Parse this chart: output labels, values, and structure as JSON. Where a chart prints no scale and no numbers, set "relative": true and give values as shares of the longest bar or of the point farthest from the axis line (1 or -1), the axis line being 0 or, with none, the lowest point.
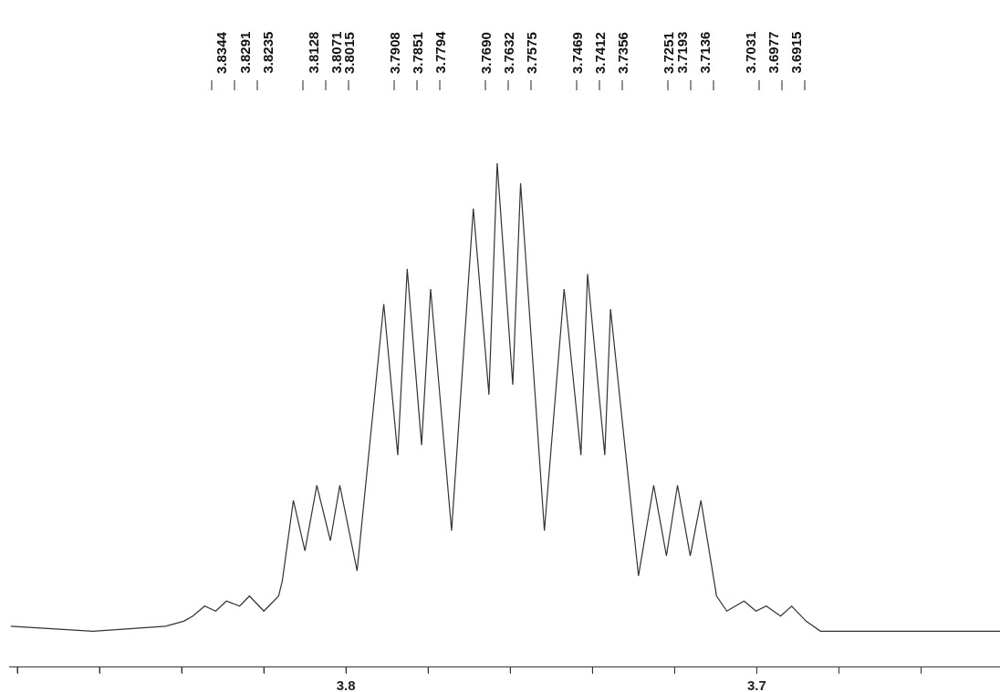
{
  "chart_data": {
    "type": "line",
    "relative": true,
    "grid": false,
    "marker": "none",
    "line_style": "solid",
    "xlim": [
      3.882,
      3.6408
    ],
    "xticks": [
      {
        "value": 3.88,
        "label": null
      },
      {
        "value": 3.86,
        "label": null
      },
      {
        "value": 3.84,
        "label": null
      },
      {
        "value": 3.82,
        "label": null
      },
      {
        "value": 3.8,
        "label": "3.8"
      },
      {
        "value": 3.78,
        "label": null
      },
      {
        "value": 3.76,
        "label": null
      },
      {
        "value": 3.74,
        "label": null
      },
      {
        "value": 3.72,
        "label": null
      },
      {
        "value": 3.7,
        "label": "3.7"
      },
      {
        "value": 3.68,
        "label": null
      },
      {
        "value": 3.66,
        "label": null
      }
    ],
    "series": [
      {
        "color": "#333333",
        "x": [
          3.8816,
          3.8616,
          3.8439,
          3.8395,
          3.8373,
          3.8344,
          3.8317,
          3.8291,
          3.8259,
          3.8235,
          3.82,
          3.8164,
          3.8155,
          3.8128,
          3.81,
          3.8071,
          3.8038,
          3.8015,
          3.7973,
          3.7908,
          3.7874,
          3.7851,
          3.7816,
          3.7794,
          3.7743,
          3.769,
          3.7652,
          3.7632,
          3.7594,
          3.7575,
          3.7517,
          3.7469,
          3.7428,
          3.7412,
          3.737,
          3.7356,
          3.7288,
          3.7251,
          3.722,
          3.7193,
          3.7162,
          3.7136,
          3.7098,
          3.7073,
          3.7031,
          3.7002,
          3.6977,
          3.6942,
          3.6915,
          3.688,
          3.6845,
          3.6621,
          3.6408
        ],
        "values": [
          0.08,
          0.07,
          0.08,
          0.09,
          0.1,
          0.12,
          0.11,
          0.13,
          0.12,
          0.14,
          0.11,
          0.14,
          0.17,
          0.33,
          0.23,
          0.36,
          0.25,
          0.36,
          0.19,
          0.72,
          0.42,
          0.79,
          0.44,
          0.75,
          0.27,
          0.91,
          0.54,
          1.0,
          0.56,
          0.96,
          0.27,
          0.75,
          0.42,
          0.78,
          0.42,
          0.71,
          0.18,
          0.36,
          0.22,
          0.36,
          0.22,
          0.33,
          0.14,
          0.11,
          0.13,
          0.11,
          0.12,
          0.1,
          0.12,
          0.09,
          0.07,
          0.07,
          0.07
        ]
      }
    ],
    "annotations": [
      "3.8344",
      "3.8291",
      "3.8235",
      "3.8128",
      "3.8071",
      "3.8015",
      "3.7908",
      "3.7851",
      "3.7794",
      "3.7690",
      "3.7632",
      "3.7575",
      "3.7469",
      "3.7412",
      "3.7356",
      "3.7251",
      "3.7193",
      "3.7136",
      "3.7031",
      "3.6977",
      "3.6915"
    ]
  }
}
